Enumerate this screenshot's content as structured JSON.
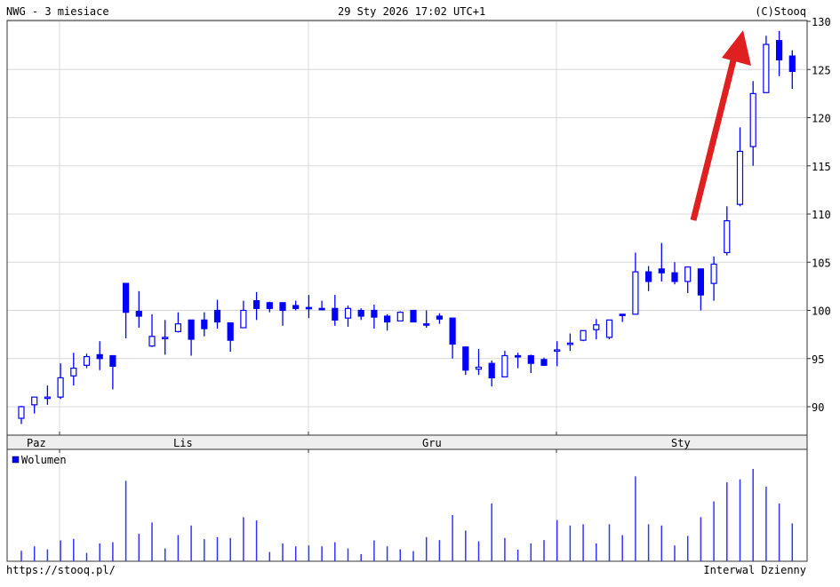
{
  "header": {
    "title": "NWG - 3 miesiace",
    "timestamp": "29 Sty 2026 17:02 UTC+1",
    "copyright": "(C)Stooq"
  },
  "footer": {
    "url": "https://stooq.pl/",
    "interval": "Interwal Dzienny"
  },
  "colors": {
    "candle": "#0000ff",
    "volume": "#3333ff",
    "arrow": "#e02020",
    "grid": "#d8d8d8",
    "strip": "#eeeeee"
  },
  "chart_data": [
    {
      "type": "candlestick",
      "ylim": [
        87,
        130
      ],
      "y_ticks": [
        "90",
        "95",
        "100",
        "105",
        "110",
        "115",
        "120",
        "125",
        "130"
      ],
      "x_tick_labels": [
        "Paz",
        "Lis",
        "Gru",
        "Sty"
      ],
      "grid": true,
      "annotation": "red arrow pointing up-right over the final rally",
      "candles_ohlc": [
        [
          88.8,
          90.1,
          88.2,
          90.0
        ],
        [
          90.2,
          91.0,
          89.3,
          91.0
        ],
        [
          90.9,
          92.2,
          90.2,
          91.0
        ],
        [
          91.0,
          94.5,
          90.8,
          93.0
        ],
        [
          93.2,
          95.6,
          92.2,
          94.0
        ],
        [
          94.3,
          95.5,
          94.0,
          95.2
        ],
        [
          95.4,
          96.8,
          93.8,
          95.0
        ],
        [
          95.3,
          95.3,
          91.8,
          94.2
        ],
        [
          102.8,
          102.8,
          97.1,
          99.8
        ],
        [
          99.9,
          102.0,
          98.2,
          99.4
        ],
        [
          96.3,
          99.6,
          96.2,
          97.3
        ],
        [
          97.1,
          99.0,
          95.4,
          97.2
        ],
        [
          97.8,
          99.8,
          97.7,
          98.6
        ],
        [
          99.0,
          99.0,
          95.3,
          97.0
        ],
        [
          99.0,
          99.8,
          97.3,
          98.1
        ],
        [
          100.0,
          101.1,
          98.1,
          98.8
        ],
        [
          98.7,
          98.7,
          95.7,
          96.9
        ],
        [
          98.2,
          101.0,
          98.2,
          100.0
        ],
        [
          101.0,
          101.9,
          99.0,
          100.2
        ],
        [
          100.8,
          100.9,
          99.8,
          100.2
        ],
        [
          100.8,
          100.8,
          98.4,
          100.0
        ],
        [
          100.5,
          101.0,
          100.0,
          100.2
        ],
        [
          100.3,
          101.6,
          99.2,
          100.3
        ],
        [
          100.2,
          101.0,
          100.0,
          100.2
        ],
        [
          100.2,
          101.6,
          98.4,
          99.0
        ],
        [
          99.2,
          100.5,
          98.3,
          100.2
        ],
        [
          100.0,
          100.2,
          99.0,
          99.4
        ],
        [
          100.0,
          100.6,
          98.1,
          99.3
        ],
        [
          99.4,
          99.6,
          97.9,
          98.8
        ],
        [
          98.9,
          99.9,
          98.9,
          99.8
        ],
        [
          100.0,
          100.0,
          98.8,
          98.8
        ],
        [
          98.6,
          100.0,
          98.2,
          98.5
        ],
        [
          99.4,
          99.7,
          98.6,
          99.1
        ],
        [
          99.2,
          99.2,
          95.0,
          96.5
        ],
        [
          96.2,
          96.2,
          93.3,
          93.8
        ],
        [
          93.9,
          96.0,
          93.3,
          94.1
        ],
        [
          94.5,
          94.8,
          92.1,
          93.0
        ],
        [
          93.1,
          95.8,
          93.1,
          95.3
        ],
        [
          95.3,
          95.6,
          94.0,
          95.2
        ],
        [
          95.3,
          95.4,
          93.5,
          94.5
        ],
        [
          94.9,
          95.1,
          94.3,
          94.3
        ],
        [
          95.8,
          96.8,
          94.2,
          95.9
        ],
        [
          96.5,
          97.6,
          95.8,
          96.6
        ],
        [
          96.9,
          97.9,
          96.8,
          97.9
        ],
        [
          98.0,
          99.1,
          97.0,
          98.5
        ],
        [
          97.2,
          99.0,
          97.0,
          99.0
        ],
        [
          99.6,
          99.6,
          98.8,
          99.5
        ],
        [
          99.6,
          106.0,
          99.6,
          104.0
        ],
        [
          104.0,
          104.6,
          102.0,
          103.0
        ],
        [
          104.3,
          107.0,
          103.0,
          103.9
        ],
        [
          103.9,
          105.0,
          102.7,
          103.0
        ],
        [
          103.0,
          104.5,
          101.8,
          104.5
        ],
        [
          104.3,
          104.3,
          100.0,
          101.6
        ],
        [
          102.8,
          105.6,
          101.0,
          104.8
        ],
        [
          106.0,
          110.8,
          105.7,
          109.3
        ],
        [
          111.0,
          119.0,
          110.8,
          116.5
        ],
        [
          117.0,
          123.8,
          115.0,
          122.5
        ],
        [
          122.6,
          128.5,
          122.6,
          127.6
        ],
        [
          128.0,
          129.0,
          124.3,
          126.0
        ],
        [
          126.4,
          127.0,
          123.0,
          124.8
        ]
      ]
    },
    {
      "type": "bar",
      "legend": "Wolumen",
      "legend_position": "top-left",
      "relative_volume": [
        35,
        50,
        40,
        70,
        75,
        28,
        60,
        64,
        270,
        92,
        130,
        43,
        88,
        120,
        74,
        81,
        78,
        148,
        137,
        31,
        60,
        50,
        53,
        50,
        64,
        43,
        24,
        70,
        50,
        40,
        34,
        81,
        71,
        155,
        103,
        67,
        194,
        78,
        39,
        60,
        71,
        138,
        120,
        124,
        60,
        124,
        88,
        285,
        124,
        120,
        53,
        85,
        148,
        201,
        265,
        275,
        310,
        250,
        194,
        127
      ]
    }
  ]
}
